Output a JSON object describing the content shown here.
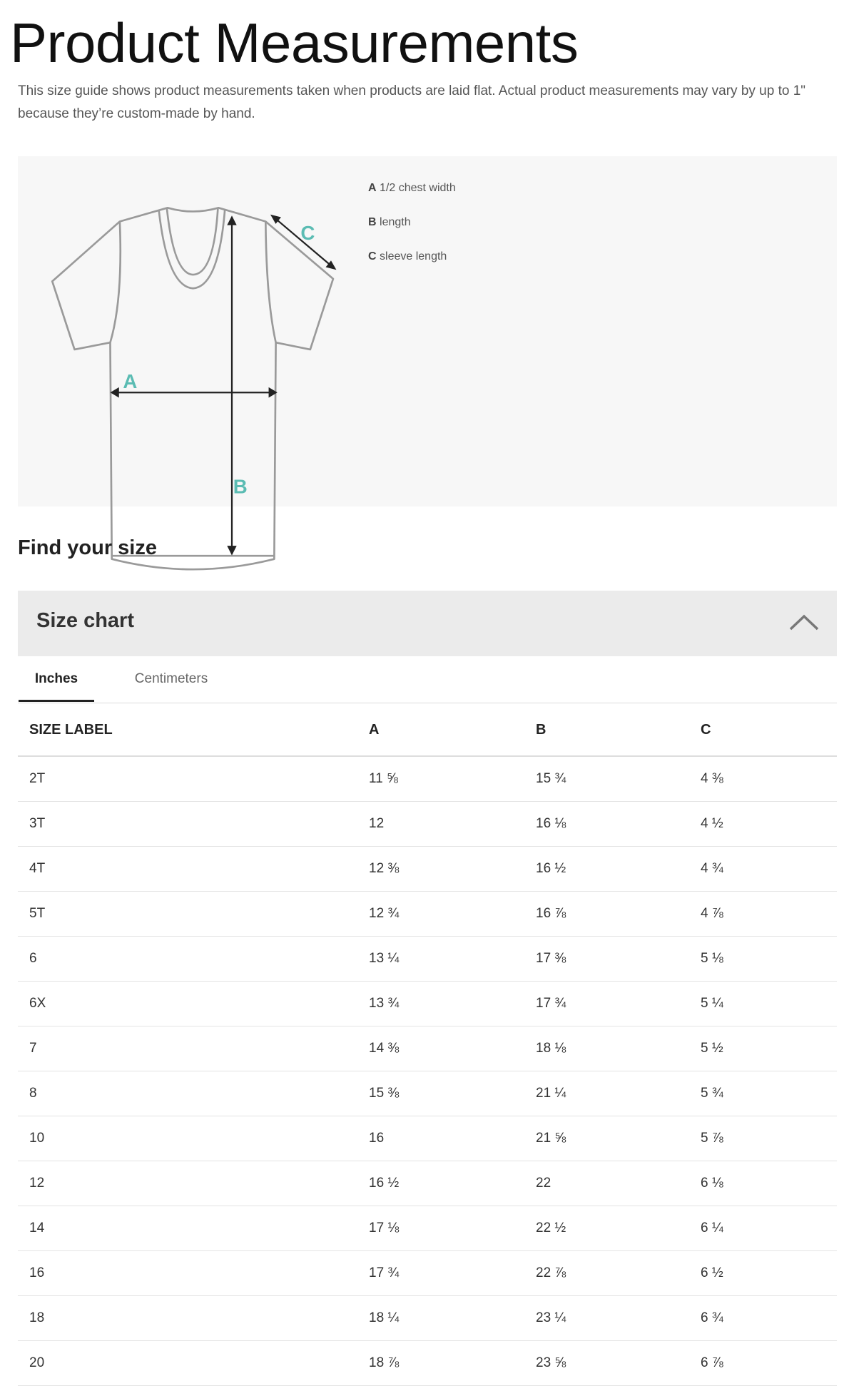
{
  "page": {
    "title": "Product Measurements",
    "description": "This size guide shows product measurements taken when products are laid flat. Actual product measurements may vary by up to 1\" because they’re custom-made by hand."
  },
  "diagram": {
    "marker_color": "#5bbcb3",
    "markers": {
      "a": "A",
      "b": "B",
      "c": "C"
    },
    "legend": [
      {
        "key": "A",
        "label": "1/2 chest width"
      },
      {
        "key": "B",
        "label": "length"
      },
      {
        "key": "C",
        "label": "sleeve length"
      }
    ]
  },
  "find_size": {
    "heading": "Find your size"
  },
  "size_chart": {
    "title": "Size chart",
    "expanded": true,
    "tabs": [
      {
        "label": "Inches",
        "active": true
      },
      {
        "label": "Centimeters",
        "active": false
      }
    ],
    "columns": [
      "SIZE LABEL",
      "A",
      "B",
      "C"
    ],
    "rows": [
      [
        "2T",
        "11 ⅝",
        "15 ¾",
        "4 ⅜"
      ],
      [
        "3T",
        "12",
        "16 ⅛",
        "4 ½"
      ],
      [
        "4T",
        "12 ⅜",
        "16 ½",
        "4 ¾"
      ],
      [
        "5T",
        "12 ¾",
        "16 ⅞",
        "4 ⅞"
      ],
      [
        "6",
        "13 ¼",
        "17 ⅜",
        "5 ⅛"
      ],
      [
        "6X",
        "13 ¾",
        "17 ¾",
        "5 ¼"
      ],
      [
        "7",
        "14 ⅜",
        "18 ⅛",
        "5 ½"
      ],
      [
        "8",
        "15 ⅜",
        "21 ¼",
        "5 ¾"
      ],
      [
        "10",
        "16",
        "21 ⅝",
        "5 ⅞"
      ],
      [
        "12",
        "16 ½",
        "22",
        "6 ⅛"
      ],
      [
        "14",
        "17 ⅛",
        "22 ½",
        "6 ¼"
      ],
      [
        "16",
        "17 ¾",
        "22 ⅞",
        "6 ½"
      ],
      [
        "18",
        "18 ¼",
        "23 ¼",
        "6 ¾"
      ],
      [
        "20",
        "18 ⅞",
        "23 ⅝",
        "6 ⅞"
      ]
    ]
  }
}
